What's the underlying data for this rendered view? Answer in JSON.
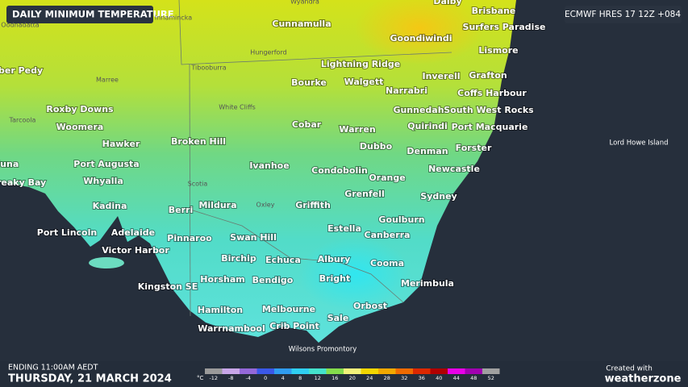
{
  "header": {
    "title": "DAILY MINIMUM TEMPERATURE",
    "model": "ECMWF HRES 17 12Z +084"
  },
  "places": [
    "Dalby",
    "Brisbane",
    "Surfers Paradise",
    "Cunnamulla",
    "Goondiwindi",
    "Lismore",
    "Lightning Ridge",
    "Inverell",
    "Grafton",
    "Bourke",
    "Walgett",
    "Narrabri",
    "Coffs Harbour",
    "Coober Pedy",
    "Roxby Downs",
    "Gunnedah",
    "South West Rocks",
    "Woomera",
    "Cobar",
    "Warren",
    "Quirindi",
    "Port Macquarie",
    "Hawker",
    "Broken Hill",
    "Dubbo",
    "Denman",
    "Forster",
    "Port Augusta",
    "Ivanhoe",
    "Condobolin",
    "Newcastle",
    "Orange",
    "Whyalla",
    "Streaky Bay",
    "Ceduna",
    "Grenfell",
    "Sydney",
    "Kadina",
    "Mildura",
    "Griffith",
    "Berri",
    "Goulburn",
    "Estella",
    "Port Lincoln",
    "Adelaide",
    "Canberra",
    "Pinnaroo",
    "Swan Hill",
    "Victor Harbor",
    "Birchip",
    "Echuca",
    "Albury",
    "Cooma",
    "Kingston SE",
    "Horsham",
    "Bendigo",
    "Bright",
    "Merimbula",
    "Hamilton",
    "Melbourne",
    "Orbost",
    "Sale",
    "Warrnambool",
    "Crib Point"
  ],
  "minor_places": [
    "Wyandra",
    "Innamincka",
    "Oodnadatta",
    "Hungerford",
    "Tibooburra",
    "Marree",
    "White Cliffs",
    "Tarcoola",
    "Scotia",
    "Oxley"
  ],
  "small_places": [
    "Wilsons Promontory",
    "Lord Howe Island"
  ],
  "legend": {
    "unit": "°C",
    "ticks": [
      -12,
      -8,
      -4,
      0,
      4,
      8,
      12,
      16,
      20,
      24,
      28,
      32,
      36,
      40,
      44,
      48,
      52
    ],
    "colors": [
      "#9a9a9a",
      "#c8a6e8",
      "#9468d8",
      "#3a58e8",
      "#2f9cf0",
      "#2fcff2",
      "#44e2cc",
      "#84dc4c",
      "#f2f27a",
      "#f2d600",
      "#f2a800",
      "#f06a00",
      "#dc2800",
      "#b00000",
      "#e800e8",
      "#a000b0",
      "#a0a0a0"
    ]
  },
  "footer": {
    "ending": "ENDING 11:00AM AEDT",
    "date": "THURSDAY, 21 MARCH 2024",
    "credit": "Created with",
    "brand": "weatherzone"
  }
}
